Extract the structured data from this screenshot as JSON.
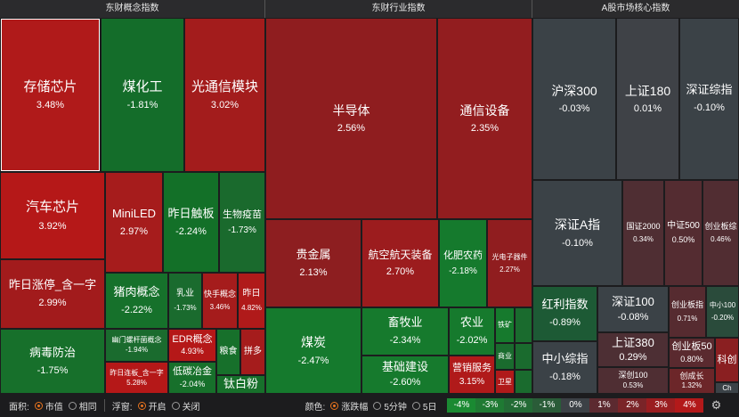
{
  "headers": {
    "concept": "东财概念指数",
    "industry": "东财行业指数",
    "core": "A股市场核心指数"
  },
  "concept": {
    "cunchu": {
      "name": "存储芯片",
      "pct": "3.48%"
    },
    "meihuagong": {
      "name": "煤化工",
      "pct": "-1.81%"
    },
    "guangtongxin": {
      "name": "光通信模块",
      "pct": "3.02%"
    },
    "qichexinpian": {
      "name": "汽车芯片",
      "pct": "3.92%"
    },
    "miniled": {
      "name": "MiniLED",
      "pct": "2.97%"
    },
    "zuorichuban": {
      "name": "昨日触板",
      "pct": "-2.24%"
    },
    "shengwuyimiao": {
      "name": "生物疫苗",
      "pct": "-1.73%"
    },
    "zuorizhangting": {
      "name": "昨日涨停_含一字",
      "pct": "2.99%"
    },
    "zhurou": {
      "name": "猪肉概念",
      "pct": "-2.22%"
    },
    "ruye": {
      "name": "乳业",
      "pct": "-1.73%"
    },
    "kuaishou": {
      "name": "快手概念",
      "pct": "3.46%"
    },
    "zuori": {
      "name": "昨日",
      "pct": "4.82%"
    },
    "bingdu": {
      "name": "病毒防治",
      "pct": "-1.75%"
    },
    "luoganmen": {
      "name": "幽门螺杆菌概念",
      "pct": "-1.94%"
    },
    "edr": {
      "name": "EDR概念",
      "pct": "4.93%"
    },
    "liangshi": {
      "name": "粮食",
      "pct": ""
    },
    "pinduoduo": {
      "name": "拼多",
      "pct": ""
    },
    "zuorilianban": {
      "name": "昨日连板_含一字",
      "pct": "5.28%"
    },
    "ditanyejin": {
      "name": "低碳冶金",
      "pct": "-2.04%"
    },
    "taibaifen": {
      "name": "钛白粉",
      "pct": ""
    }
  },
  "industry": {
    "bandaoti": {
      "name": "半导体",
      "pct": "2.56%"
    },
    "tongxin": {
      "name": "通信设备",
      "pct": "2.35%"
    },
    "guijinshu": {
      "name": "贵金属",
      "pct": "2.13%"
    },
    "hangkong": {
      "name": "航空航天装备",
      "pct": "2.70%"
    },
    "huafei": {
      "name": "化肥农药",
      "pct": "-2.18%"
    },
    "guangdianzi": {
      "name": "光电子器件",
      "pct": "2.27%"
    },
    "meitan": {
      "name": "煤炭",
      "pct": "-2.47%"
    },
    "xumuye": {
      "name": "畜牧业",
      "pct": "-2.34%"
    },
    "nongye": {
      "name": "农业",
      "pct": "-2.02%"
    },
    "tiekuang": {
      "name": "铁矿",
      "pct": ""
    },
    "shangye": {
      "name": "商业",
      "pct": ""
    },
    "jichujianshe": {
      "name": "基础建设",
      "pct": "-2.60%"
    },
    "yingxiao": {
      "name": "营销服务",
      "pct": "3.15%"
    },
    "weixing": {
      "name": "卫星",
      "pct": ""
    }
  },
  "core": {
    "hs300": {
      "name": "沪深300",
      "pct": "-0.03%"
    },
    "sz180": {
      "name": "上证180",
      "pct": "0.01%"
    },
    "szzz": {
      "name": "深证综指",
      "pct": "-0.10%"
    },
    "szag": {
      "name": "深证A指",
      "pct": "-0.10%"
    },
    "gz2000": {
      "name": "国证2000",
      "pct": "0.34%"
    },
    "zz500": {
      "name": "中证500",
      "pct": "0.50%"
    },
    "cybzs": {
      "name": "创业板综",
      "pct": "0.46%"
    },
    "hongli": {
      "name": "红利指数",
      "pct": "-0.89%"
    },
    "sz100": {
      "name": "深证100",
      "pct": "-0.08%"
    },
    "cybz": {
      "name": "创业板指",
      "pct": "0.71%"
    },
    "zx100": {
      "name": "中小100",
      "pct": "-0.20%"
    },
    "sz380": {
      "name": "上证380",
      "pct": "0.29%"
    },
    "zxzz": {
      "name": "中小综指",
      "pct": "-0.18%"
    },
    "cyb50": {
      "name": "创业板50",
      "pct": "0.80%"
    },
    "kechuang": {
      "name": "科创",
      "pct": ""
    },
    "sc100": {
      "name": "深创100",
      "pct": "0.53%"
    },
    "cyz": {
      "name": "创成长",
      "pct": "1.32%"
    },
    "ch": {
      "name": "Ch",
      "pct": ""
    }
  },
  "controls": {
    "area_label": "面积:",
    "area_opt1": "市值",
    "area_opt2": "相同",
    "float_label": "浮窗:",
    "float_opt1": "开启",
    "float_opt2": "关闭",
    "color_label": "颜色:",
    "color_opt1": "涨跌幅",
    "color_opt2": "5分钟",
    "color_opt3": "5日"
  },
  "legend": [
    "-4%",
    "-3%",
    "-2%",
    "-1%",
    "0%",
    "1%",
    "2%",
    "3%",
    "4%"
  ],
  "legend_colors": [
    "#1a8a32",
    "#1f7a33",
    "#236b35",
    "#2a5c38",
    "#3c4146",
    "#5c2a30",
    "#7a2428",
    "#9a1d20",
    "#b3191a"
  ],
  "gear_icon": "gear-icon"
}
